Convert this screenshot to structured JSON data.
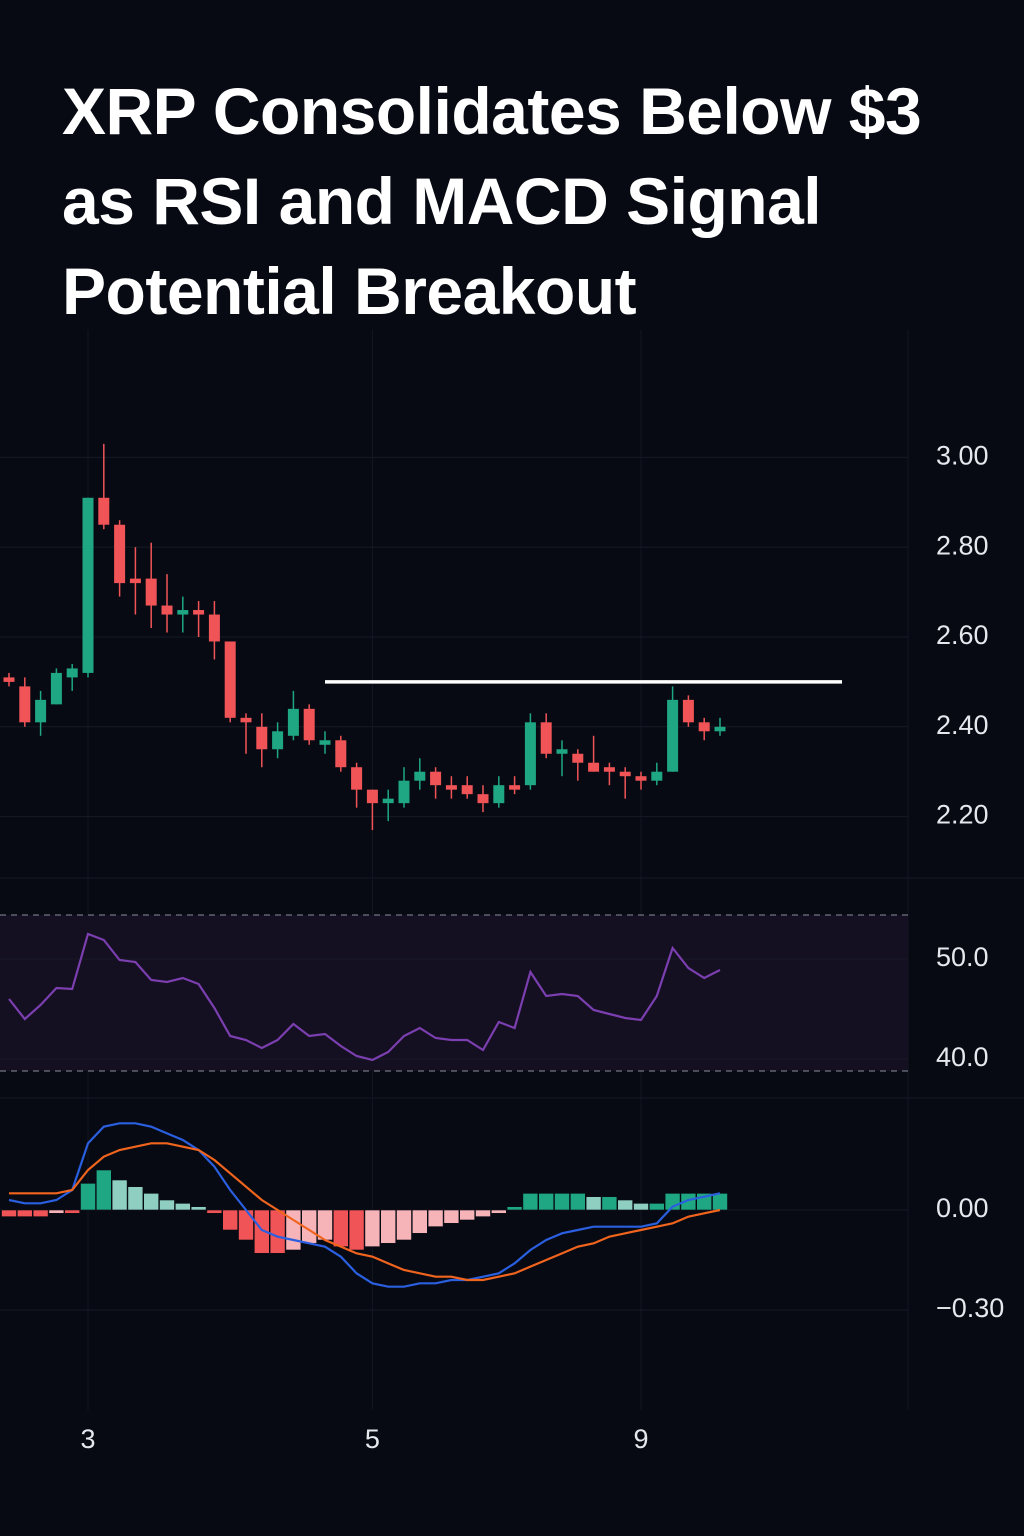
{
  "title": "XRP Consolidates Below $3 as RSI and MACD Signal Potential Breakout",
  "chart_data": [
    {
      "type": "candlestick",
      "categories": [
        null,
        null,
        null,
        null,
        null,
        "3",
        null,
        null,
        null,
        null,
        null,
        null,
        null,
        null,
        null,
        null,
        null,
        null,
        null,
        null,
        null,
        null,
        null,
        "5",
        null,
        null,
        null,
        null,
        null,
        null,
        null,
        null,
        null,
        null,
        null,
        null,
        null,
        null,
        null,
        null,
        "9",
        null,
        null,
        null,
        null,
        null
      ],
      "open": [
        2.51,
        2.49,
        2.41,
        2.45,
        2.51,
        2.52,
        2.91,
        2.85,
        2.73,
        2.73,
        2.67,
        2.65,
        2.66,
        2.65,
        2.59,
        2.42,
        2.4,
        2.35,
        2.38,
        2.44,
        2.36,
        2.37,
        2.31,
        2.26,
        2.23,
        2.23,
        2.28,
        2.3,
        2.27,
        2.27,
        2.25,
        2.23,
        2.27,
        2.27,
        2.41,
        2.34,
        2.34,
        2.32,
        2.31,
        2.3,
        2.29,
        2.28,
        2.3,
        2.46,
        2.41,
        2.39
      ],
      "high": [
        2.52,
        2.51,
        2.48,
        2.53,
        2.54,
        2.91,
        3.03,
        2.86,
        2.8,
        2.81,
        2.74,
        2.69,
        2.68,
        2.68,
        2.59,
        2.43,
        2.43,
        2.41,
        2.48,
        2.45,
        2.39,
        2.38,
        2.32,
        2.26,
        2.26,
        2.31,
        2.33,
        2.31,
        2.29,
        2.29,
        2.27,
        2.29,
        2.29,
        2.43,
        2.43,
        2.37,
        2.35,
        2.38,
        2.32,
        2.31,
        2.3,
        2.32,
        2.49,
        2.47,
        2.42,
        2.42
      ],
      "low": [
        2.49,
        2.4,
        2.38,
        2.45,
        2.48,
        2.51,
        2.84,
        2.69,
        2.65,
        2.62,
        2.61,
        2.61,
        2.6,
        2.55,
        2.41,
        2.34,
        2.31,
        2.33,
        2.37,
        2.36,
        2.34,
        2.3,
        2.22,
        2.17,
        2.19,
        2.22,
        2.26,
        2.24,
        2.24,
        2.24,
        2.21,
        2.22,
        2.25,
        2.26,
        2.33,
        2.29,
        2.28,
        2.3,
        2.27,
        2.24,
        2.26,
        2.27,
        2.3,
        2.4,
        2.37,
        2.38
      ],
      "close": [
        2.5,
        2.41,
        2.46,
        2.52,
        2.53,
        2.91,
        2.85,
        2.72,
        2.72,
        2.67,
        2.65,
        2.66,
        2.65,
        2.59,
        2.42,
        2.41,
        2.35,
        2.39,
        2.44,
        2.37,
        2.37,
        2.31,
        2.26,
        2.23,
        2.24,
        2.28,
        2.3,
        2.27,
        2.26,
        2.25,
        2.23,
        2.27,
        2.26,
        2.41,
        2.34,
        2.35,
        2.32,
        2.3,
        2.3,
        2.29,
        2.28,
        2.3,
        2.46,
        2.41,
        2.39,
        2.4
      ],
      "up_color": "#1fa784",
      "down_color": "#f05457",
      "resistance": 2.5,
      "resistance_color": "#ffffff",
      "ylim": [
        2.07,
        3.15
      ],
      "yticks": [
        {
          "value": 3.0,
          "label": "3.00"
        },
        {
          "value": 2.8,
          "label": "2.80"
        },
        {
          "value": 2.6,
          "label": "2.60"
        },
        {
          "value": 2.4,
          "label": "2.40"
        },
        {
          "value": 2.2,
          "label": "2.20"
        }
      ],
      "grid": true
    },
    {
      "type": "line",
      "series": [
        {
          "color": "#7b3fb0",
          "values": [
            46,
            44,
            45.4,
            47.1,
            47,
            52.5,
            51.9,
            49.9,
            49.7,
            47.9,
            47.7,
            48.1,
            47.5,
            45.1,
            42.3,
            41.9,
            41.1,
            41.9,
            43.5,
            42.3,
            42.5,
            41.3,
            40.3,
            39.9,
            40.7,
            42.3,
            43.1,
            42.1,
            41.9,
            41.9,
            40.9,
            43.7,
            43.1,
            48.7,
            46.3,
            46.5,
            46.3,
            44.9,
            44.5,
            44.1,
            43.9,
            46.3,
            51.1,
            49.1,
            48.1,
            48.9
          ]
        }
      ],
      "bands": [
        54.4,
        38.8
      ],
      "band_color": "#150f22",
      "ylim": [
        36.4,
        57.9
      ],
      "yticks": [
        {
          "value": 50,
          "label": "50.0"
        },
        {
          "value": 40,
          "label": "40.0"
        }
      ],
      "grid": true
    },
    {
      "type": "macd",
      "histogram": [
        -0.02,
        -0.02,
        -0.02,
        -0.01,
        -0.01,
        0.08,
        0.12,
        0.09,
        0.07,
        0.05,
        0.03,
        0.02,
        0.01,
        -0.01,
        -0.06,
        -0.09,
        -0.13,
        -0.13,
        -0.12,
        -0.1,
        -0.09,
        -0.11,
        -0.12,
        -0.11,
        -0.1,
        -0.09,
        -0.07,
        -0.05,
        -0.04,
        -0.03,
        -0.02,
        -0.01,
        0.01,
        0.05,
        0.05,
        0.05,
        0.05,
        0.04,
        0.04,
        0.03,
        0.02,
        0.02,
        0.05,
        0.05,
        0.05,
        0.05
      ],
      "series": [
        {
          "color": "#2a5fe0",
          "values": [
            0.03,
            0.02,
            0.02,
            0.03,
            0.06,
            0.2,
            0.25,
            0.26,
            0.26,
            0.25,
            0.23,
            0.21,
            0.18,
            0.13,
            0.06,
            0.0,
            -0.06,
            -0.08,
            -0.09,
            -0.1,
            -0.11,
            -0.14,
            -0.19,
            -0.22,
            -0.23,
            -0.23,
            -0.22,
            -0.22,
            -0.21,
            -0.21,
            -0.2,
            -0.19,
            -0.16,
            -0.12,
            -0.09,
            -0.07,
            -0.06,
            -0.05,
            -0.05,
            -0.05,
            -0.05,
            -0.04,
            0.01,
            0.03,
            0.04,
            0.05
          ]
        },
        {
          "color": "#f0641e",
          "values": [
            0.05,
            0.05,
            0.05,
            0.05,
            0.06,
            0.12,
            0.16,
            0.18,
            0.19,
            0.2,
            0.2,
            0.19,
            0.18,
            0.15,
            0.11,
            0.07,
            0.03,
            0.0,
            -0.03,
            -0.06,
            -0.09,
            -0.11,
            -0.13,
            -0.14,
            -0.16,
            -0.18,
            -0.19,
            -0.2,
            -0.2,
            -0.21,
            -0.21,
            -0.2,
            -0.19,
            -0.17,
            -0.15,
            -0.13,
            -0.11,
            -0.1,
            -0.08,
            -0.07,
            -0.06,
            -0.05,
            -0.04,
            -0.02,
            -0.01,
            0.0
          ]
        }
      ],
      "ylim": [
        -0.6,
        0.33
      ],
      "yticks": [
        {
          "value": 0,
          "label": "0.00"
        },
        {
          "value": -0.3,
          "label": "−0.30"
        }
      ],
      "grid": true
    }
  ]
}
